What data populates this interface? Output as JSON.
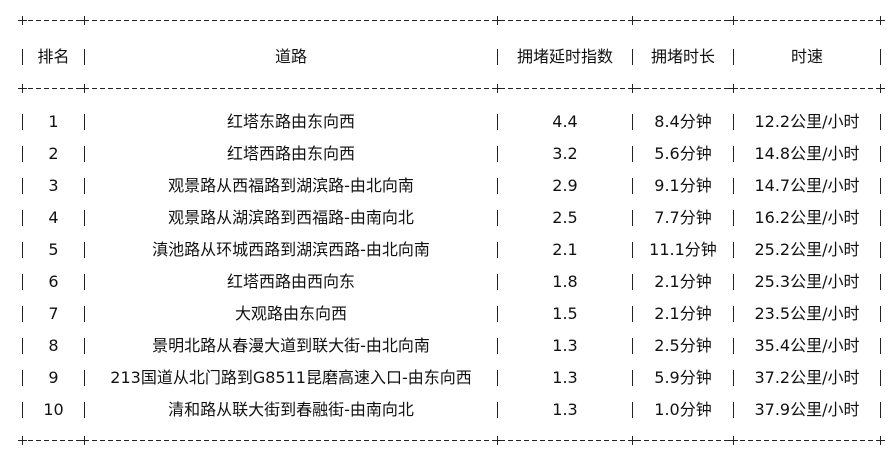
{
  "table": {
    "headers": [
      "排名",
      "道路",
      "拥堵延时指数",
      "拥堵时长",
      "时速"
    ],
    "rows": [
      [
        "1",
        "红塔东路由东向西",
        "4.4",
        "8.4分钟",
        "12.2公里/小时"
      ],
      [
        "2",
        "红塔西路由东向西",
        "3.2",
        "5.6分钟",
        "14.8公里/小时"
      ],
      [
        "3",
        "观景路从西福路到湖滨路-由北向南",
        "2.9",
        "9.1分钟",
        "14.7公里/小时"
      ],
      [
        "4",
        "观景路从湖滨路到西福路-由南向北",
        "2.5",
        "7.7分钟",
        "16.2公里/小时"
      ],
      [
        "5",
        "滇池路从环城西路到湖滨西路-由北向南",
        "2.1",
        "11.1分钟",
        "25.2公里/小时"
      ],
      [
        "6",
        "红塔西路由西向东",
        "1.8",
        "2.1分钟",
        "25.3公里/小时"
      ],
      [
        "7",
        "大观路由东向西",
        "1.5",
        "2.1分钟",
        "23.5公里/小时"
      ],
      [
        "8",
        "景明北路从春漫大道到联大街-由北向南",
        "1.3",
        "2.5分钟",
        "35.4公里/小时"
      ],
      [
        "9",
        "213国道从北门路到G8511昆磨高速入口-由东向西",
        "1.3",
        "5.9分钟",
        "37.2公里/小时"
      ],
      [
        "10",
        "清和路从联大街到春融街-由南向北",
        "1.3",
        "1.0分钟",
        "37.9公里/小时"
      ]
    ]
  }
}
